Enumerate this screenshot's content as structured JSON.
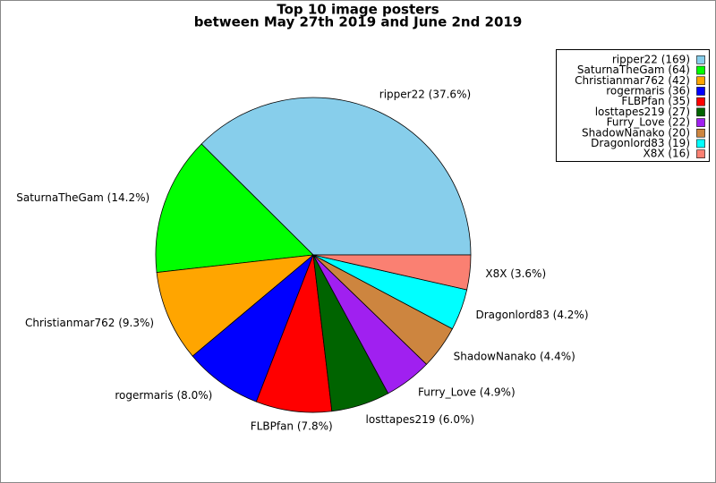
{
  "chart_data": {
    "type": "pie",
    "title": "Top 10 image posters",
    "subtitle": "between May 27th 2019 and June 2nd 2019",
    "values": [
      169,
      64,
      42,
      36,
      35,
      27,
      22,
      20,
      19,
      16
    ],
    "labels": [
      "ripper22 (169)",
      "SaturnaTheGam (64)",
      "Christianmar762 (42)",
      "rogermaris (36)",
      "FLBPfan (35)",
      "losttapes219 (27)",
      "Furry_Love (22)",
      "ShadowNanako (20)",
      "Dragonlord83 (19)",
      "X8X (16)"
    ],
    "value_labels": [
      "ripper22 (37.6%)",
      "SaturnaTheGam (14.2%)",
      "Christianmar762 (9.3%)",
      "rogermaris (8.0%)",
      "FLBPfan (7.8%)",
      "losttapes219 (6.0%)",
      "Furry_Love (4.9%)",
      "ShadowNanako (4.4%)",
      "Dragonlord83 (4.2%)",
      "X8X (3.6%)"
    ],
    "colors": [
      "#87ceeb",
      "#00ff00",
      "#ffa500",
      "#0000ff",
      "#ff0000",
      "#006400",
      "#a020f0",
      "#cd853f",
      "#00ffff",
      "#fa8072"
    ],
    "legend": "upper right"
  }
}
